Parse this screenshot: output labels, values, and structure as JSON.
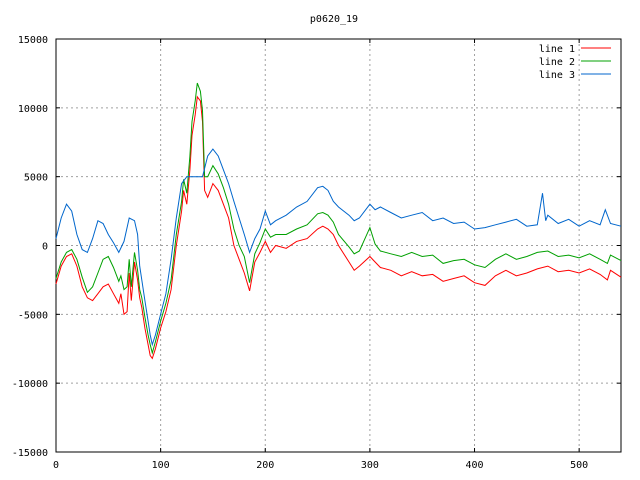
{
  "chart_data": {
    "type": "line",
    "title": "p0620_19",
    "xlabel": "",
    "ylabel": "",
    "xlim": [
      0,
      540
    ],
    "ylim": [
      -15000,
      15000
    ],
    "x_ticks": [
      0,
      100,
      200,
      300,
      400,
      500
    ],
    "y_ticks": [
      -15000,
      -10000,
      -5000,
      0,
      5000,
      10000,
      15000
    ],
    "grid": true,
    "legend_position": "top-right",
    "series": [
      {
        "name": "line 1",
        "color": "#ff0000",
        "x": [
          0,
          5,
          10,
          15,
          20,
          25,
          30,
          35,
          40,
          45,
          50,
          55,
          60,
          62,
          65,
          68,
          70,
          72,
          75,
          78,
          80,
          82,
          85,
          88,
          90,
          92,
          95,
          100,
          105,
          110,
          115,
          120,
          122,
          125,
          128,
          130,
          133,
          135,
          138,
          140,
          142,
          145,
          150,
          155,
          160,
          165,
          170,
          175,
          180,
          185,
          190,
          195,
          200,
          205,
          210,
          220,
          230,
          240,
          250,
          255,
          260,
          265,
          270,
          280,
          285,
          290,
          300,
          305,
          310,
          320,
          330,
          340,
          350,
          360,
          370,
          380,
          390,
          400,
          410,
          420,
          430,
          440,
          450,
          460,
          470,
          480,
          490,
          500,
          510,
          520,
          527,
          530,
          540
        ],
        "y": [
          -2800,
          -1500,
          -800,
          -600,
          -1500,
          -3000,
          -3800,
          -4000,
          -3500,
          -3000,
          -2800,
          -3500,
          -4200,
          -3500,
          -5000,
          -4800,
          -2000,
          -4000,
          -1200,
          -2500,
          -3800,
          -4500,
          -6000,
          -7200,
          -8000,
          -8200,
          -7500,
          -6000,
          -4800,
          -3200,
          0,
          2500,
          4000,
          3000,
          5500,
          8000,
          9500,
          10800,
          10500,
          9000,
          4000,
          3500,
          4500,
          4000,
          3000,
          2000,
          0,
          -1000,
          -2000,
          -3300,
          -1200,
          -500,
          300,
          -500,
          0,
          -200,
          300,
          500,
          1200,
          1400,
          1200,
          800,
          0,
          -1200,
          -1800,
          -1500,
          -800,
          -1200,
          -1600,
          -1800,
          -2200,
          -1900,
          -2200,
          -2100,
          -2600,
          -2400,
          -2200,
          -2700,
          -2900,
          -2200,
          -1800,
          -2200,
          -2000,
          -1700,
          -1500,
          -1900,
          -1800,
          -2000,
          -1700,
          -2100,
          -2500,
          -1800,
          -2300
        ]
      },
      {
        "name": "line 2",
        "color": "#00a000",
        "x": [
          0,
          5,
          10,
          15,
          20,
          25,
          30,
          35,
          40,
          45,
          50,
          55,
          60,
          62,
          65,
          68,
          70,
          72,
          75,
          78,
          80,
          82,
          85,
          88,
          90,
          92,
          95,
          100,
          105,
          110,
          115,
          120,
          122,
          125,
          128,
          130,
          133,
          135,
          138,
          140,
          142,
          145,
          150,
          155,
          160,
          165,
          170,
          175,
          180,
          185,
          190,
          195,
          200,
          205,
          210,
          220,
          230,
          240,
          250,
          255,
          260,
          265,
          270,
          280,
          285,
          290,
          300,
          305,
          310,
          320,
          330,
          340,
          350,
          360,
          370,
          380,
          390,
          400,
          410,
          420,
          430,
          440,
          450,
          460,
          470,
          480,
          490,
          500,
          510,
          520,
          527,
          530,
          540
        ],
        "y": [
          -2400,
          -1200,
          -500,
          -300,
          -1000,
          -2300,
          -3400,
          -3000,
          -2000,
          -1000,
          -800,
          -1600,
          -2600,
          -2200,
          -3200,
          -3000,
          -1000,
          -3000,
          -500,
          -1800,
          -3200,
          -3800,
          -5200,
          -6500,
          -7200,
          -7800,
          -7000,
          -5500,
          -4200,
          -2500,
          800,
          3200,
          4800,
          3800,
          6500,
          9000,
          10500,
          11800,
          11200,
          9800,
          5000,
          5000,
          5800,
          5200,
          4200,
          3000,
          1200,
          0,
          -800,
          -2700,
          -600,
          200,
          1200,
          600,
          800,
          800,
          1200,
          1500,
          2300,
          2400,
          2200,
          1700,
          800,
          -100,
          -600,
          -400,
          1300,
          100,
          -400,
          -600,
          -800,
          -500,
          -800,
          -700,
          -1300,
          -1100,
          -1000,
          -1400,
          -1600,
          -1000,
          -600,
          -1000,
          -800,
          -500,
          -400,
          -800,
          -700,
          -900,
          -600,
          -1000,
          -1300,
          -700,
          -1100
        ]
      },
      {
        "name": "line 3",
        "color": "#0066cc",
        "x": [
          0,
          5,
          10,
          15,
          20,
          25,
          30,
          35,
          40,
          45,
          50,
          55,
          60,
          65,
          70,
          75,
          78,
          80,
          82,
          85,
          88,
          90,
          92,
          95,
          100,
          105,
          110,
          115,
          120,
          125,
          130,
          135,
          140,
          145,
          150,
          155,
          160,
          165,
          170,
          175,
          180,
          185,
          190,
          195,
          200,
          205,
          210,
          220,
          230,
          240,
          250,
          255,
          260,
          265,
          270,
          280,
          285,
          290,
          300,
          305,
          310,
          320,
          330,
          340,
          350,
          360,
          370,
          380,
          390,
          400,
          410,
          420,
          430,
          440,
          450,
          460,
          465,
          468,
          470,
          480,
          490,
          500,
          510,
          520,
          525,
          530,
          540
        ],
        "y": [
          500,
          2000,
          3000,
          2500,
          800,
          -300,
          -500,
          500,
          1800,
          1600,
          800,
          200,
          -500,
          300,
          2000,
          1800,
          800,
          -1500,
          -2500,
          -4000,
          -5500,
          -6500,
          -7200,
          -6500,
          -5000,
          -3500,
          -1000,
          2000,
          4500,
          5000,
          5000,
          5000,
          5000,
          6500,
          7000,
          6500,
          5500,
          4500,
          3200,
          2000,
          800,
          -500,
          500,
          1200,
          2500,
          1500,
          1800,
          2200,
          2800,
          3200,
          4200,
          4300,
          4000,
          3200,
          2800,
          2200,
          1800,
          2000,
          3000,
          2600,
          2800,
          2400,
          2000,
          2200,
          2400,
          1800,
          2000,
          1600,
          1700,
          1200,
          1300,
          1500,
          1700,
          1900,
          1400,
          1500,
          3800,
          1800,
          2200,
          1600,
          1900,
          1400,
          1800,
          1500,
          2600,
          1600,
          1400
        ]
      }
    ]
  }
}
